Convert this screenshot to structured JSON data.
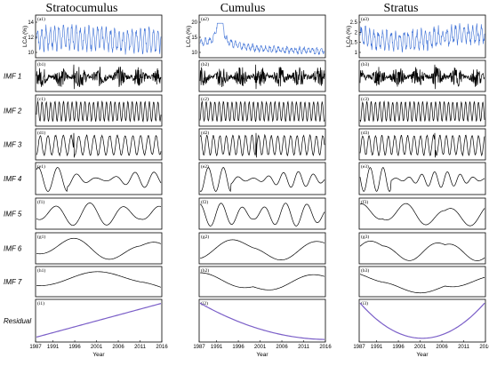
{
  "columns": [
    {
      "title": "Stratocumulus",
      "ylabel": "LCA (%)",
      "yticks": [
        "10",
        "12",
        "14"
      ],
      "ylim": [
        9,
        16
      ],
      "tags": [
        "(a1)",
        "(b1)",
        "(c1)",
        "(d1)",
        "(e1)",
        "(f1)",
        "(g1)",
        "(h1)",
        "(i1)"
      ]
    },
    {
      "title": "Cumulus",
      "ylabel": "LCA (%)",
      "yticks": [
        "10",
        "15",
        "20"
      ],
      "ylim": [
        9,
        22
      ],
      "tags": [
        "(a2)",
        "(b2)",
        "(c2)",
        "(d2)",
        "(e2)",
        "(f2)",
        "(g2)",
        "(h2)",
        "(i2)"
      ]
    },
    {
      "title": "Stratus",
      "ylabel": "LCA (%)",
      "yticks": [
        "1",
        "1.5",
        "2",
        "2.5"
      ],
      "ylim": [
        0.8,
        2.6
      ],
      "tags": [
        "(a3)",
        "(b3)",
        "(c3)",
        "(d3)",
        "(e3)",
        "(f3)",
        "(g3)",
        "(h3)",
        "(i3)"
      ]
    }
  ],
  "row_labels": [
    "IMF 1",
    "IMF 2",
    "IMF 3",
    "IMF 4",
    "IMF 5",
    "IMF 6",
    "IMF 7",
    "Residual"
  ],
  "xticks": [
    "1987",
    "1991",
    "1996",
    "2001",
    "2006",
    "2011",
    "2016"
  ],
  "xlabel": "Year",
  "colors": {
    "lca": "#3b6fd6",
    "imf": "#000000",
    "residual": "#7b5fc8"
  },
  "chart_data": [
    {
      "type": "line",
      "column": "Stratocumulus",
      "xlim": [
        1987,
        2016
      ],
      "lca": {
        "min": 10,
        "max": 15.5,
        "mean": 12.8
      },
      "imf_periods_years": [
        0.35,
        1.0,
        1.8,
        4.5,
        8,
        18,
        40
      ],
      "residual": {
        "x": [
          1987,
          2016
        ],
        "y": [
          0.05,
          0.95
        ]
      }
    },
    {
      "type": "line",
      "column": "Cumulus",
      "xlim": [
        1987,
        2016
      ],
      "lca": {
        "min": 11,
        "max": 21,
        "peak_year": 1991
      },
      "imf_periods_years": [
        0.35,
        1.0,
        1.5,
        3.5,
        5,
        20,
        30
      ],
      "residual": {
        "x": [
          1987,
          2001,
          2016
        ],
        "y": [
          0.95,
          0.3,
          0.02
        ]
      }
    },
    {
      "type": "line",
      "column": "Stratus",
      "xlim": [
        1987,
        2016
      ],
      "lca": {
        "min": 1.0,
        "max": 2.5,
        "mean": 1.7
      },
      "imf_periods_years": [
        0.35,
        1.0,
        1.5,
        3.0,
        10,
        16,
        40
      ],
      "residual": {
        "x": [
          1987,
          2001,
          2016
        ],
        "y": [
          0.95,
          0.02,
          0.95
        ]
      }
    }
  ]
}
